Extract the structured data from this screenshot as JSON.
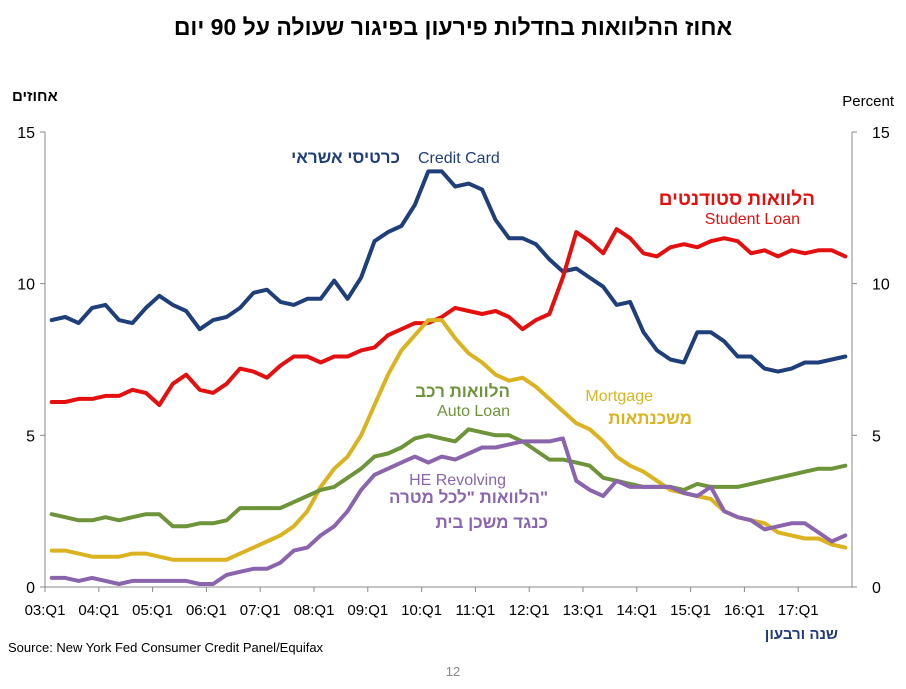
{
  "header": {
    "title": "אחוז ההלוואות בחדלות פירעון בפיגור שעולה על 90 יום"
  },
  "axes": {
    "y_left_label": "אחוזים",
    "y_right_label": "Percent",
    "x_label": "שנה ורבעון"
  },
  "footer": {
    "source": "Source: New York Fed Consumer Credit Panel/Equifax",
    "page_number": "12"
  },
  "colors": {
    "credit_card": "#1f3f7a",
    "student_loan": "#e3100f",
    "mortgage": "#dbb320",
    "auto_loan": "#6e943a",
    "he_revolving": "#8a64ad",
    "axis": "#888888"
  },
  "chart_data": {
    "type": "line",
    "title": "אחוז ההלוואות בחדלות פירעון בפיגור שעולה על 90 יום",
    "xlabel": "שנה ורבעון",
    "ylabel": "אחוזים",
    "ylim": [
      0,
      15
    ],
    "yticks": [
      0,
      5,
      10,
      15
    ],
    "grid": false,
    "x_start": "2003 Q1",
    "x_end": "2017 Q4",
    "x_tick_labels": [
      "03:Q1",
      "04:Q1",
      "05:Q1",
      "06:Q1",
      "07:Q1",
      "08:Q1",
      "09:Q1",
      "10:Q1",
      "11:Q1",
      "12:Q1",
      "13:Q1",
      "14:Q1",
      "15:Q1",
      "16:Q1",
      "17:Q1"
    ],
    "series": [
      {
        "key": "credit_card",
        "labels": [
          "כרטיסי אשראי",
          "Credit Card"
        ],
        "values": [
          8.8,
          8.9,
          8.7,
          9.2,
          9.3,
          8.8,
          8.7,
          9.2,
          9.6,
          9.3,
          9.1,
          8.5,
          8.8,
          8.9,
          9.2,
          9.7,
          9.8,
          9.4,
          9.3,
          9.5,
          9.5,
          10.1,
          9.5,
          10.2,
          11.4,
          11.7,
          11.9,
          12.6,
          13.7,
          13.7,
          13.2,
          13.3,
          13.1,
          12.1,
          11.5,
          11.5,
          11.3,
          10.8,
          10.4,
          10.5,
          10.2,
          9.9,
          9.3,
          9.4,
          8.4,
          7.8,
          7.5,
          7.4,
          8.4,
          8.4,
          8.1,
          7.6,
          7.6,
          7.2,
          7.1,
          7.2,
          7.4,
          7.4,
          7.5,
          7.6
        ]
      },
      {
        "key": "student_loan",
        "labels": [
          "הלוואות סטודנטים",
          "Student Loan"
        ],
        "values": [
          6.1,
          6.1,
          6.2,
          6.2,
          6.3,
          6.3,
          6.5,
          6.4,
          6.0,
          6.7,
          7.0,
          6.5,
          6.4,
          6.7,
          7.2,
          7.1,
          6.9,
          7.3,
          7.6,
          7.6,
          7.4,
          7.6,
          7.6,
          7.8,
          7.9,
          8.3,
          8.5,
          8.7,
          8.7,
          8.9,
          9.2,
          9.1,
          9.0,
          9.1,
          8.9,
          8.5,
          8.8,
          9.0,
          10.2,
          11.7,
          11.4,
          11.0,
          11.8,
          11.5,
          11.0,
          10.9,
          11.2,
          11.3,
          11.2,
          11.4,
          11.5,
          11.4,
          11.0,
          11.1,
          10.9,
          11.1,
          11.0,
          11.1,
          11.1,
          10.9
        ]
      },
      {
        "key": "mortgage",
        "labels": [
          "Mortgage",
          "משכנתאות"
        ],
        "values": [
          1.2,
          1.2,
          1.1,
          1.0,
          1.0,
          1.0,
          1.1,
          1.1,
          1.0,
          0.9,
          0.9,
          0.9,
          0.9,
          0.9,
          1.1,
          1.3,
          1.5,
          1.7,
          2.0,
          2.5,
          3.3,
          3.9,
          4.3,
          5.0,
          6.0,
          7.0,
          7.8,
          8.3,
          8.8,
          8.8,
          8.2,
          7.7,
          7.4,
          7.0,
          6.8,
          6.9,
          6.6,
          6.2,
          5.8,
          5.4,
          5.2,
          4.8,
          4.3,
          4.0,
          3.8,
          3.5,
          3.2,
          3.1,
          3.0,
          2.9,
          2.5,
          2.3,
          2.2,
          2.1,
          1.8,
          1.7,
          1.6,
          1.6,
          1.4,
          1.3
        ]
      },
      {
        "key": "auto_loan",
        "labels": [
          "הלוואות רכב",
          "Auto Loan"
        ],
        "values": [
          2.4,
          2.3,
          2.2,
          2.2,
          2.3,
          2.2,
          2.3,
          2.4,
          2.4,
          2.0,
          2.0,
          2.1,
          2.1,
          2.2,
          2.6,
          2.6,
          2.6,
          2.6,
          2.8,
          3.0,
          3.2,
          3.3,
          3.6,
          3.9,
          4.3,
          4.4,
          4.6,
          4.9,
          5.0,
          4.9,
          4.8,
          5.2,
          5.1,
          5.0,
          5.0,
          4.8,
          4.5,
          4.2,
          4.2,
          4.1,
          4.0,
          3.6,
          3.5,
          3.4,
          3.3,
          3.3,
          3.3,
          3.2,
          3.4,
          3.3,
          3.3,
          3.3,
          3.4,
          3.5,
          3.6,
          3.7,
          3.8,
          3.9,
          3.9,
          4.0
        ]
      },
      {
        "key": "he_revolving",
        "labels": [
          "HE Revolving",
          "הלוואות \"לכל מטרה\"",
          "כנגד משכן בית"
        ],
        "values": [
          0.3,
          0.3,
          0.2,
          0.3,
          0.2,
          0.1,
          0.2,
          0.2,
          0.2,
          0.2,
          0.2,
          0.1,
          0.1,
          0.4,
          0.5,
          0.6,
          0.6,
          0.8,
          1.2,
          1.3,
          1.7,
          2.0,
          2.5,
          3.2,
          3.7,
          3.9,
          4.1,
          4.3,
          4.1,
          4.3,
          4.2,
          4.4,
          4.6,
          4.6,
          4.7,
          4.8,
          4.8,
          4.8,
          4.9,
          3.5,
          3.2,
          3.0,
          3.5,
          3.3,
          3.3,
          3.3,
          3.3,
          3.1,
          3.0,
          3.3,
          2.5,
          2.3,
          2.2,
          1.9,
          2.0,
          2.1,
          2.1,
          1.8,
          1.5,
          1.7
        ]
      }
    ]
  }
}
